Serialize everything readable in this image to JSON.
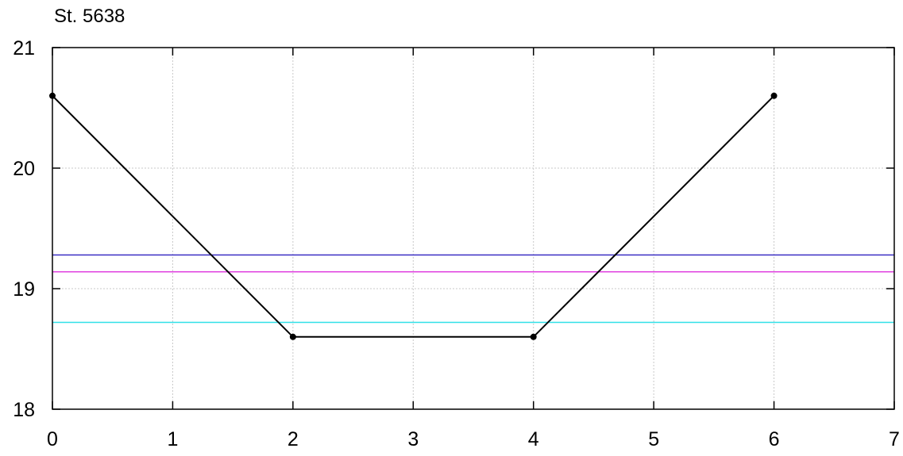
{
  "chart_data": {
    "type": "line",
    "title": "St. 5638",
    "xlabel": "",
    "ylabel": "",
    "xlim": [
      0,
      7
    ],
    "ylim": [
      18,
      21
    ],
    "xticks": [
      0,
      1,
      2,
      3,
      4,
      5,
      6,
      7
    ],
    "yticks": [
      18,
      19,
      20,
      21
    ],
    "grid": true,
    "series": [
      {
        "x": [
          0,
          2,
          4,
          6
        ],
        "y": [
          20.6,
          18.6,
          18.6,
          20.6
        ],
        "color": "#000000",
        "markers": true
      }
    ],
    "reference_lines": [
      {
        "y": 19.28,
        "color": "#3a2fc4"
      },
      {
        "y": 19.14,
        "color": "#e040e0"
      },
      {
        "y": 18.72,
        "color": "#30e0e8"
      }
    ]
  }
}
